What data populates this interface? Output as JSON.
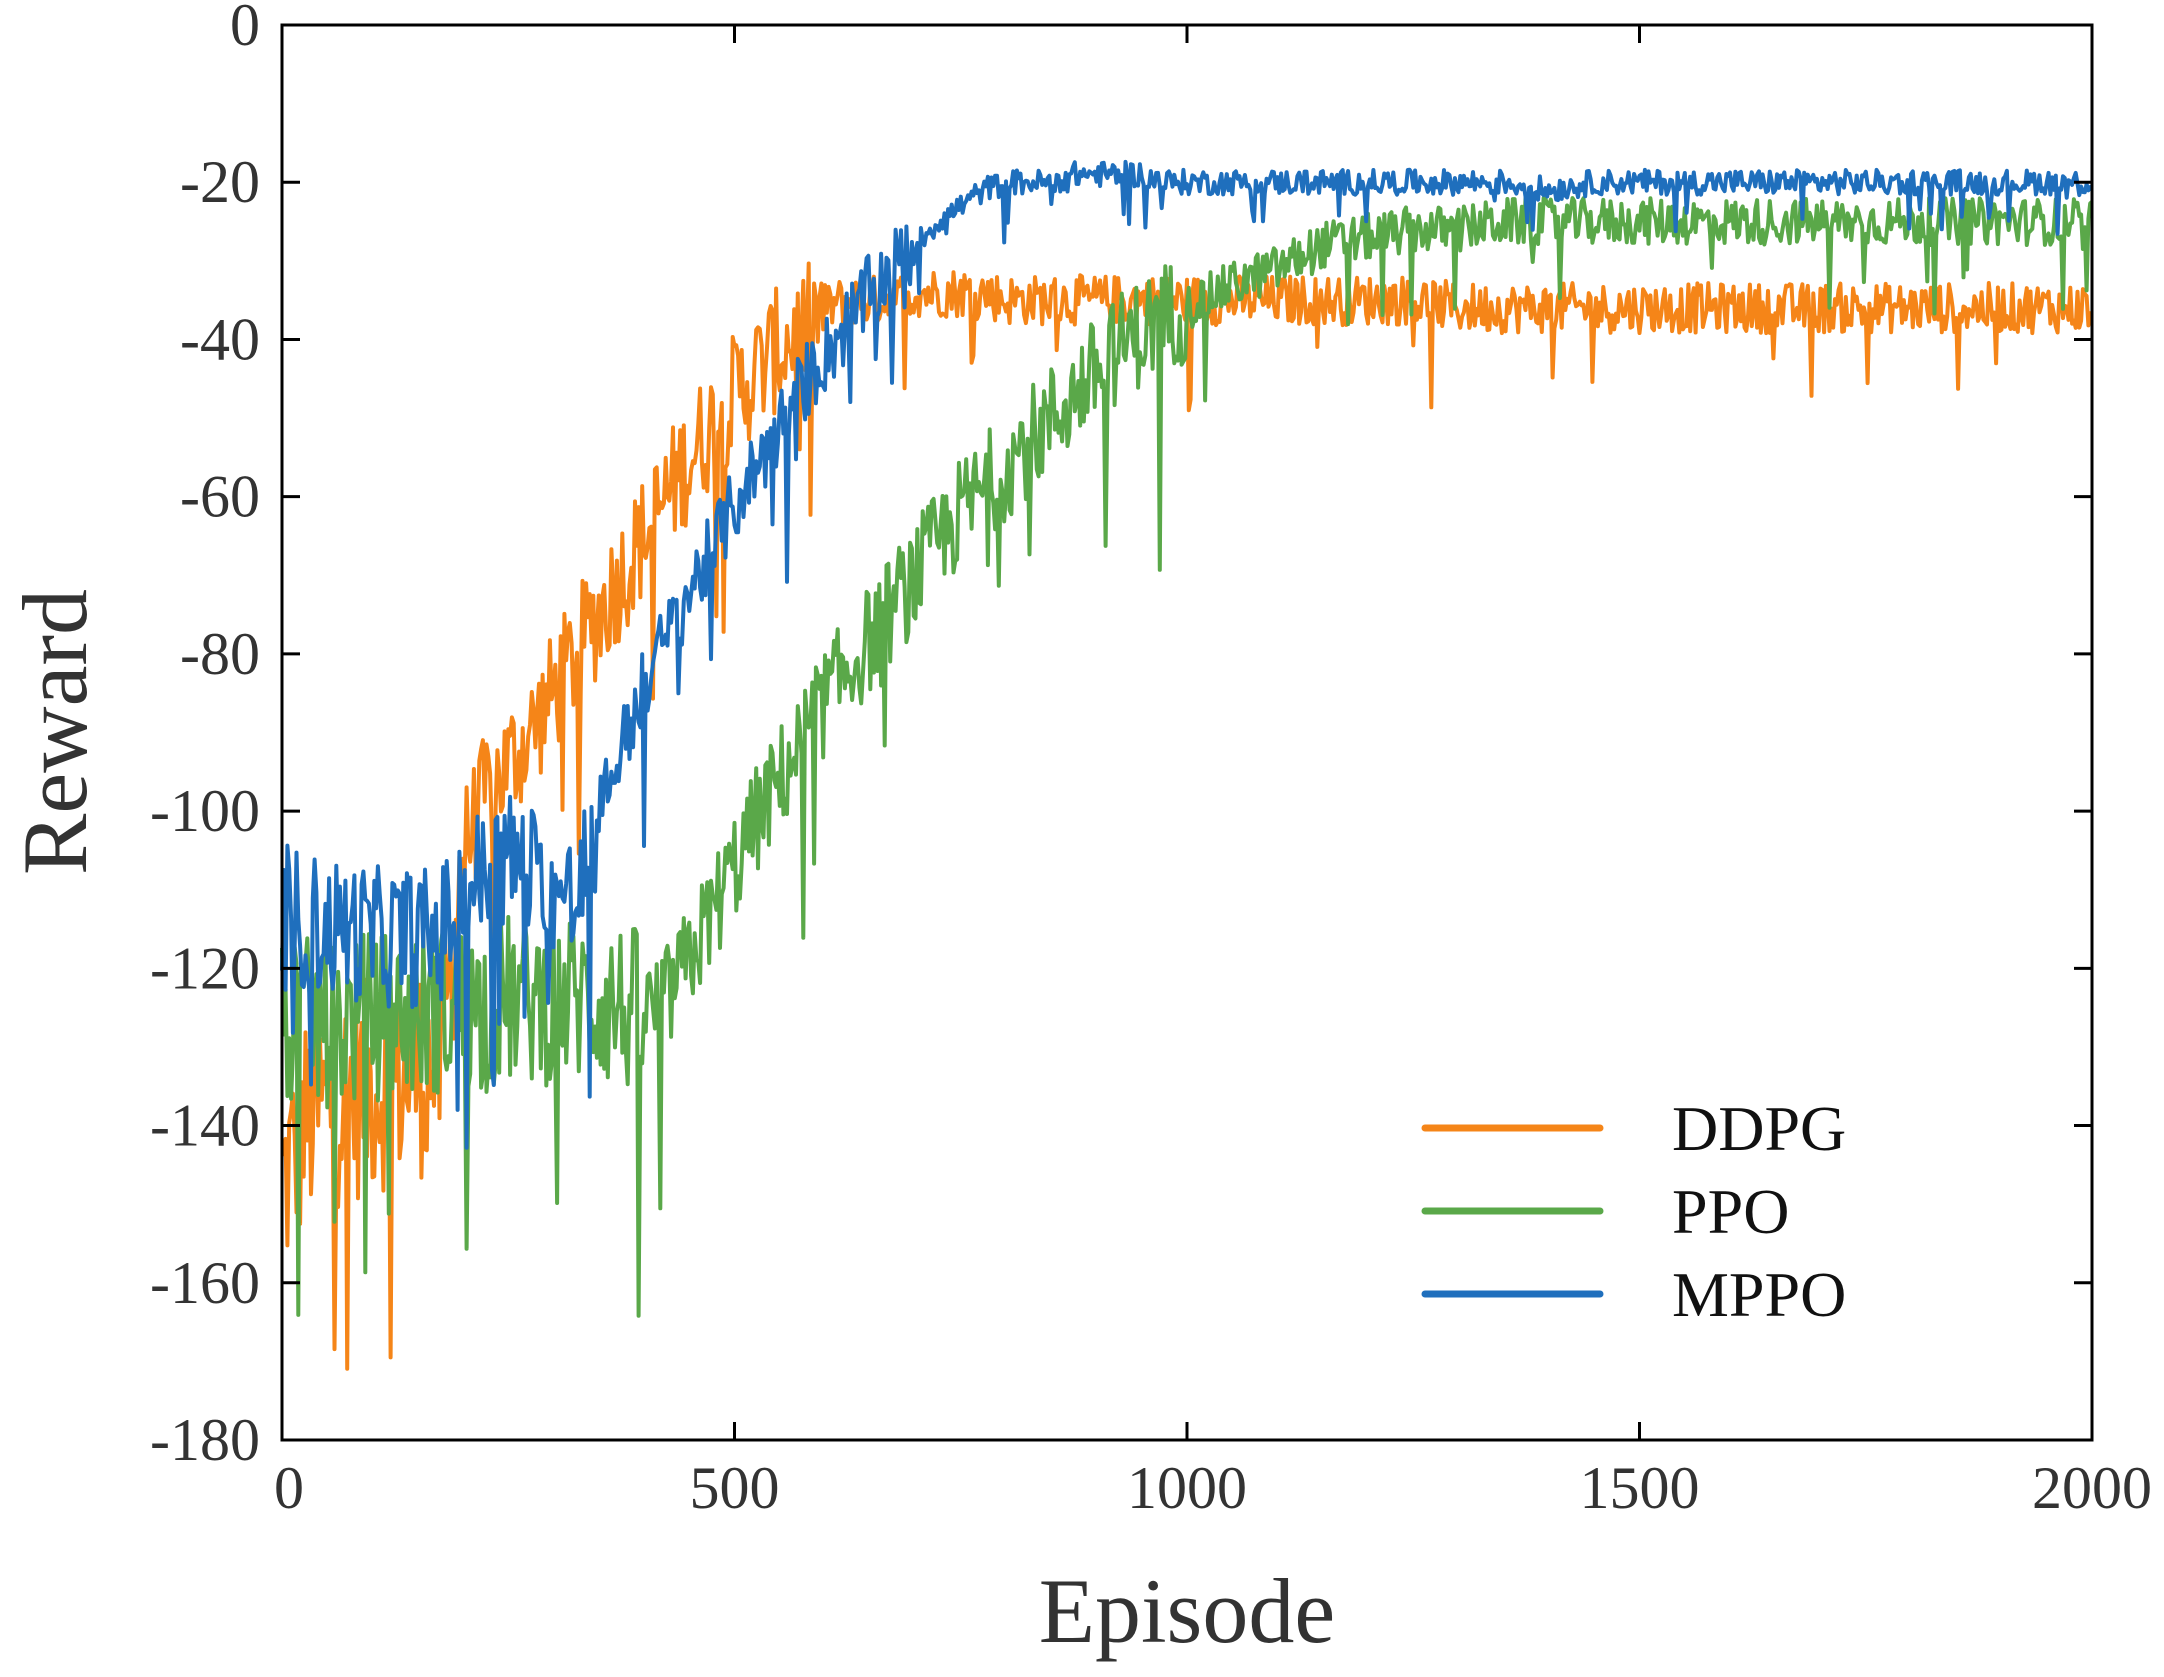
{
  "chart_data": {
    "type": "line",
    "title": "",
    "xlabel": "Episode",
    "ylabel": "Reward",
    "xlim": [
      0,
      2000
    ],
    "ylim": [
      -180,
      0
    ],
    "xticks": [
      0,
      500,
      1000,
      1500,
      2000
    ],
    "xtick_labels": [
      "0",
      "500",
      "1000",
      "1500",
      "2000"
    ],
    "yticks": [
      0,
      -20,
      -40,
      -60,
      -80,
      -100,
      -120,
      -140,
      -160,
      -180
    ],
    "ytick_labels": [
      "0",
      "-20",
      "-40",
      "-60",
      "-80",
      "-100",
      "-120",
      "-140",
      "-160",
      "-180"
    ],
    "grid": false,
    "legend_position": "bottom-right",
    "series": [
      {
        "name": "DDPG",
        "color": "#f58518",
        "x": [
          0,
          25,
          50,
          75,
          100,
          125,
          150,
          175,
          200,
          225,
          250,
          275,
          300,
          325,
          350,
          375,
          400,
          425,
          450,
          475,
          500,
          525,
          550,
          575,
          600,
          625,
          650,
          675,
          700,
          725,
          750,
          775,
          800,
          825,
          850,
          875,
          900,
          925,
          950,
          975,
          1000,
          1050,
          1100,
          1150,
          1200,
          1250,
          1300,
          1350,
          1400,
          1450,
          1500,
          1550,
          1600,
          1650,
          1700,
          1750,
          1800,
          1850,
          1900,
          1950,
          2000
        ],
        "values": [
          -148,
          -140,
          -137,
          -136,
          -135,
          -134,
          -133,
          -132,
          -105,
          -98,
          -94,
          -90,
          -85,
          -80,
          -75,
          -70,
          -65,
          -60,
          -55,
          -51,
          -47,
          -44,
          -41,
          -39,
          -36,
          -35,
          -35,
          -35,
          -34,
          -34,
          -34,
          -34,
          -35,
          -35,
          -35,
          -35,
          -35,
          -35,
          -35,
          -35,
          -35,
          -35,
          -35,
          -35,
          -35,
          -35,
          -36,
          -36,
          -36,
          -36,
          -36,
          -36,
          -36,
          -36,
          -36,
          -36,
          -36,
          -36,
          -36,
          -36,
          -36
        ]
      },
      {
        "name": "PPO",
        "color": "#5aa849",
        "x": [
          0,
          25,
          50,
          75,
          100,
          125,
          150,
          175,
          200,
          225,
          250,
          275,
          300,
          325,
          350,
          375,
          400,
          425,
          450,
          475,
          500,
          525,
          550,
          575,
          600,
          625,
          650,
          675,
          700,
          725,
          750,
          775,
          800,
          825,
          850,
          875,
          900,
          925,
          950,
          975,
          1000,
          1050,
          1100,
          1150,
          1200,
          1250,
          1300,
          1350,
          1400,
          1450,
          1500,
          1550,
          1600,
          1650,
          1700,
          1750,
          1800,
          1850,
          1900,
          1950,
          2000
        ],
        "values": [
          -128,
          -127,
          -127,
          -127,
          -126,
          -126,
          -126,
          -125,
          -125,
          -125,
          -124,
          -124,
          -124,
          -124,
          -124,
          -125,
          -126,
          -124,
          -119,
          -113,
          -107,
          -101,
          -96,
          -91,
          -86,
          -82,
          -78,
          -74,
          -70,
          -66,
          -62,
          -59,
          -56,
          -53,
          -50,
          -47,
          -44,
          -41,
          -39,
          -37,
          -36,
          -33,
          -31,
          -28,
          -27,
          -26,
          -26,
          -25,
          -25,
          -25,
          -25,
          -25,
          -25,
          -25,
          -25,
          -25,
          -25,
          -25,
          -25,
          -25,
          -25
        ]
      },
      {
        "name": "MPPO",
        "color": "#1f6fbd",
        "x": [
          0,
          25,
          50,
          75,
          100,
          125,
          150,
          175,
          200,
          225,
          250,
          275,
          300,
          325,
          350,
          375,
          400,
          425,
          450,
          475,
          500,
          525,
          550,
          575,
          600,
          625,
          650,
          675,
          700,
          725,
          750,
          775,
          800,
          825,
          850,
          875,
          900,
          925,
          950,
          975,
          1000,
          1050,
          1100,
          1150,
          1200,
          1250,
          1300,
          1350,
          1400,
          1450,
          1500,
          1550,
          1600,
          1650,
          1700,
          1750,
          1800,
          1850,
          1900,
          1950,
          2000
        ],
        "values": [
          -113,
          -114,
          -115,
          -115,
          -116,
          -116,
          -116,
          -116,
          -110,
          -108,
          -106,
          -108,
          -110,
          -112,
          -100,
          -92,
          -84,
          -78,
          -72,
          -67,
          -61,
          -56,
          -51,
          -46,
          -42,
          -38,
          -34,
          -31,
          -28,
          -25,
          -23,
          -21,
          -20,
          -20,
          -20,
          -19,
          -19,
          -19,
          -19,
          -20,
          -20,
          -20,
          -20,
          -20,
          -20,
          -20,
          -20,
          -20,
          -21,
          -20,
          -20,
          -20,
          -20,
          -20,
          -20,
          -20,
          -20,
          -20,
          -20,
          -20,
          -20
        ]
      }
    ]
  }
}
